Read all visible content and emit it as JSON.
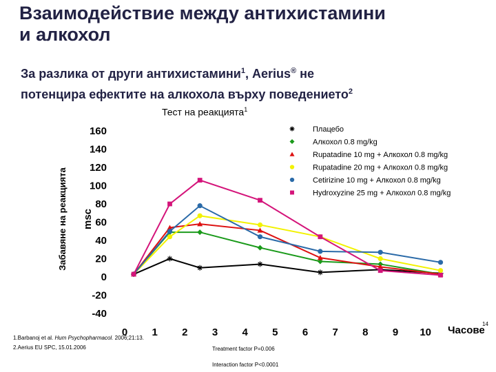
{
  "slide": {
    "title_line1": "Взаимодействие между антихистамини",
    "title_line2": "и алкохол",
    "subtitle_line1": "За разлика от други антихистамини",
    "subtitle_sup1": "1",
    "subtitle_line1_end": ", Aerius",
    "subtitle_reg": "®",
    "subtitle_line1_tail": " не",
    "subtitle_line2": "потенцира ефектите на алкохола върху поведението",
    "subtitle_sup2": "2",
    "page_number": "14"
  },
  "footnotes": {
    "ref1_prefix": "1.Barbanoj et al. ",
    "ref1_journal": "Hum Psychopharmacol.",
    "ref1_suffix": " 2006;21:13.",
    "ref2": "2.Aerius EU SPC, 15.01.2006"
  },
  "stats": {
    "treatment": "Treatment factor P=0.006",
    "interaction": "Interaction factor P<0.0001"
  },
  "chart_data": {
    "type": "line",
    "title": "Тест на реакцията",
    "title_sup": "1",
    "xlabel": "Часове",
    "ylabel_outer": "Забавяне на реакцията",
    "ylabel": "msc",
    "xlim": [
      0,
      12
    ],
    "ylim": [
      -40,
      160
    ],
    "x_ticks": [
      0,
      1,
      2,
      3,
      4,
      5,
      6,
      7,
      8,
      9,
      10
    ],
    "y_ticks": [
      160,
      140,
      120,
      100,
      80,
      60,
      40,
      20,
      0,
      -20,
      -40
    ],
    "legend_position": "top-right",
    "series": [
      {
        "name": "Плацебо",
        "color": "#000000",
        "marker": "asterisk",
        "x": [
          0.3,
          1.5,
          2.5,
          4.5,
          6.5,
          8.5,
          10.5
        ],
        "y": [
          3,
          20,
          10,
          14,
          5,
          8,
          4
        ]
      },
      {
        "name": "Алкохол 0.8 mg/kg",
        "color": "#1a9a1a",
        "marker": "diamond",
        "x": [
          0.3,
          1.5,
          2.5,
          4.5,
          6.5,
          8.5,
          10.5
        ],
        "y": [
          3,
          49,
          49,
          32,
          17,
          14,
          3
        ]
      },
      {
        "name": "Rupatadine 10 mg + Алкохол 0.8 mg/kg",
        "color": "#dd1111",
        "marker": "triangle",
        "x": [
          0.3,
          1.5,
          2.5,
          4.5,
          6.5,
          8.5,
          10.5
        ],
        "y": [
          3,
          54,
          58,
          51,
          21,
          11,
          3
        ]
      },
      {
        "name": "Rupatadine 20 mg + Алкохол 0.8 mg/kg",
        "color": "#f2f200",
        "marker": "circle",
        "x": [
          0.3,
          1.5,
          2.5,
          4.5,
          6.5,
          8.5,
          10.5
        ],
        "y": [
          3,
          44,
          67,
          57,
          44,
          20,
          7
        ]
      },
      {
        "name": "Cetirizine 10 mg + Алкохол 0.8 mg/kg",
        "color": "#2a6aa8",
        "marker": "circle",
        "x": [
          0.3,
          1.5,
          2.5,
          4.5,
          6.5,
          8.5,
          10.5
        ],
        "y": [
          3,
          50,
          78,
          44,
          28,
          27,
          16
        ]
      },
      {
        "name": "Hydroxyzine 25 mg + Алкохол 0.8 mg/kg",
        "color": "#d4147a",
        "marker": "square",
        "x": [
          0.3,
          1.5,
          2.5,
          4.5,
          6.5,
          8.5,
          10.5
        ],
        "y": [
          3,
          80,
          106,
          84,
          44,
          7,
          2
        ]
      }
    ]
  }
}
